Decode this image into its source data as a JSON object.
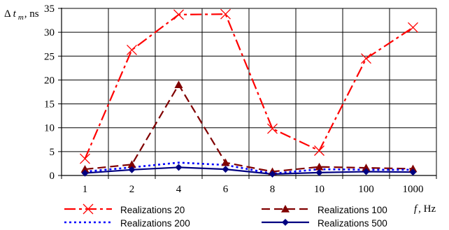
{
  "chart_data": {
    "type": "line",
    "title": "",
    "ylabel_parts": {
      "base": "Δ",
      "var": "t",
      "sub": "m",
      "unit": ", ns"
    },
    "xlabel_parts": {
      "var": "f",
      "unit": ", Hz"
    },
    "categories": [
      "1",
      "2",
      "4",
      "6",
      "8",
      "10",
      "100",
      "1000"
    ],
    "ylim": [
      0,
      35
    ],
    "yticks": [
      0,
      5,
      10,
      15,
      20,
      25,
      30,
      35
    ],
    "grid": true,
    "series": [
      {
        "name": "Realizations 20",
        "values": [
          3.5,
          26.3,
          33.7,
          33.8,
          9.8,
          5.2,
          24.5,
          31.0
        ],
        "color": "#ff0000",
        "marker": "x",
        "dash": "dashdot"
      },
      {
        "name": "Realizations 100",
        "values": [
          1.3,
          2.3,
          19.0,
          2.7,
          0.8,
          1.8,
          1.6,
          1.4
        ],
        "color": "#800000",
        "marker": "triangle",
        "dash": "dash"
      },
      {
        "name": "Realizations 200",
        "values": [
          0.8,
          1.7,
          2.7,
          2.2,
          0.4,
          1.3,
          1.2,
          1.2
        ],
        "color": "#0000ff",
        "marker": "none",
        "dash": "dot"
      },
      {
        "name": "Realizations 500",
        "values": [
          0.5,
          1.2,
          1.7,
          1.3,
          0.3,
          0.6,
          0.8,
          0.7
        ],
        "color": "#000080",
        "marker": "diamond",
        "dash": "solid"
      }
    ],
    "legend": {
      "placement": "bottom"
    }
  }
}
